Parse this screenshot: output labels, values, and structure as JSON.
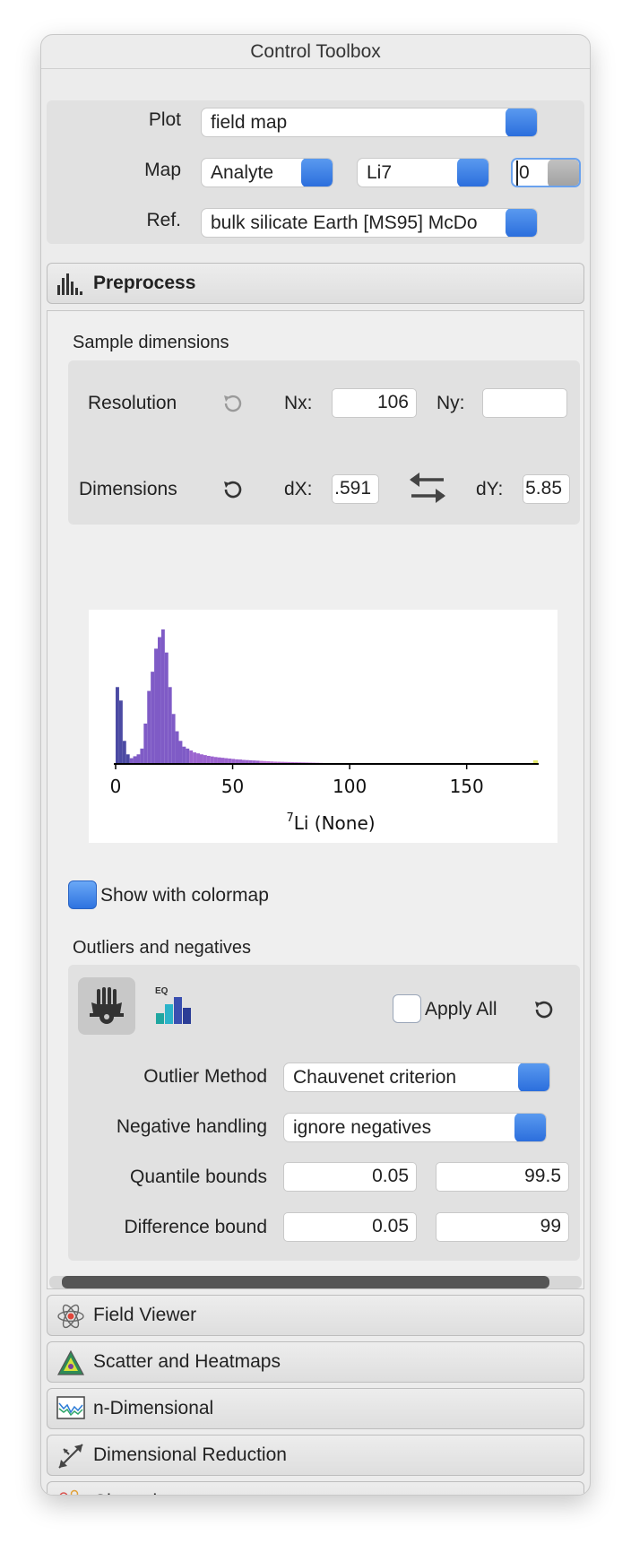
{
  "window": {
    "title": "Control Toolbox"
  },
  "top": {
    "plot_label": "Plot",
    "plot_value": "field map",
    "map_label": "Map",
    "map_type": "Analyte",
    "map_analyte": "Li7",
    "map_index": "0",
    "ref_label": "Ref.",
    "ref_value": "bulk silicate Earth [MS95] McDo"
  },
  "preprocess": {
    "header": "Preprocess",
    "sample_dimensions_title": "Sample dimensions",
    "resolution_label": "Resolution",
    "nx_label": "Nx:",
    "nx_value": "106",
    "ny_label": "Ny:",
    "ny_value": "",
    "dimensions_label": "Dimensions",
    "dx_label": "dX:",
    "dx_value": ".591",
    "dy_label": "dY:",
    "dy_value": "5.85",
    "show_colormap_label": "Show with colormap",
    "show_colormap_checked": true,
    "outliers_title": "Outliers and negatives",
    "eq_label": "EQ",
    "apply_all_label": "Apply All",
    "apply_all_checked": false,
    "outlier_method_label": "Outlier Method",
    "outlier_method_value": "Chauvenet criterion",
    "negative_handling_label": "Negative handling",
    "negative_handling_value": "ignore negatives",
    "quantile_bounds_label": "Quantile bounds",
    "quantile_low": "0.05",
    "quantile_high": "99.5",
    "difference_bound_label": "Difference bound",
    "difference_low": "0.05",
    "difference_high": "99"
  },
  "chart_data": {
    "type": "bar",
    "xlabel_sup": "7",
    "xlabel": "Li (None)",
    "xticks": [
      "0",
      "50",
      "100",
      "150"
    ],
    "xlim": [
      0,
      180
    ],
    "bin_width": 1.5,
    "bin_start": 0,
    "colors": [
      "#4b4aa3",
      "#7f5bc6",
      "#9c64cf",
      "#c07ad8",
      "#e3e86a"
    ],
    "values": [
      40,
      33,
      12,
      5,
      3,
      4,
      5,
      8,
      21,
      38,
      48,
      60,
      66,
      70,
      58,
      40,
      26,
      17,
      12,
      9,
      8,
      7,
      6,
      5.5,
      5,
      4.6,
      4.2,
      3.9,
      3.6,
      3.4,
      3.2,
      3.0,
      2.8,
      2.6,
      2.4,
      2.3,
      2.1,
      2.0,
      1.9,
      1.8,
      1.7,
      1.6,
      1.5,
      1.4,
      1.3,
      1.2,
      1.15,
      1.1,
      1.05,
      1.0,
      0.95,
      0.9,
      0.85,
      0.8,
      0.75,
      0.7,
      0.65,
      0.6,
      0.55,
      0.5,
      0.45,
      0.4,
      0.35,
      0.3,
      0.25,
      0.2,
      0.15,
      0.1
    ]
  },
  "sections": [
    {
      "label": "Field Viewer",
      "icon": "atom-icon"
    },
    {
      "label": "Scatter and Heatmaps",
      "icon": "triangle-heatmap-icon"
    },
    {
      "label": "n-Dimensional",
      "icon": "spectrum-icon"
    },
    {
      "label": "Dimensional Reduction",
      "icon": "dimension-reduction-icon"
    },
    {
      "label": "Clustering",
      "icon": "clustering-icon"
    }
  ]
}
